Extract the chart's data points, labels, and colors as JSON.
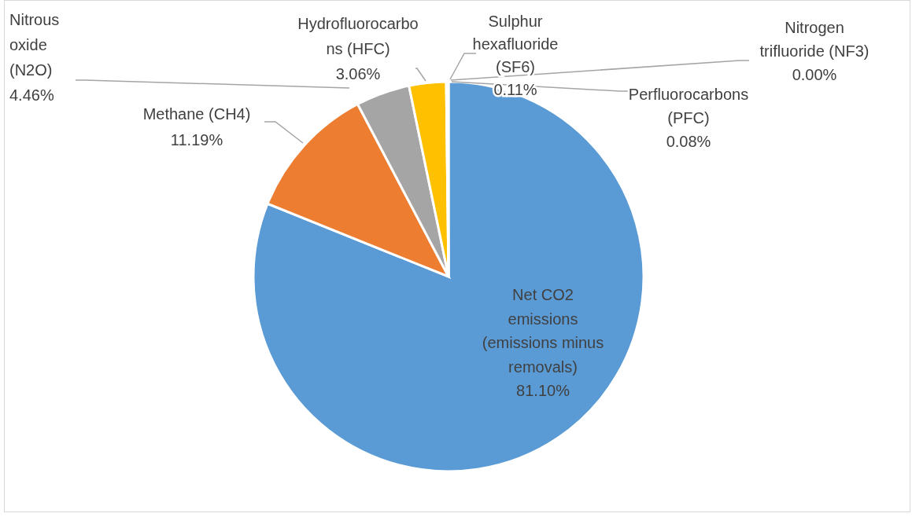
{
  "chart_data": {
    "type": "pie",
    "categories": [
      "Net CO2 emissions (emissions minus removals)",
      "Methane (CH4)",
      "Nitrous oxide (N2O)",
      "Hydrofluorocarbons (HFC)",
      "Perfluorocarbons (PFC)",
      "Sulphur hexafluoride (SF6)",
      "Nitrogen trifluoride (NF3)"
    ],
    "values": [
      81.1,
      11.19,
      4.46,
      3.06,
      0.08,
      0.11,
      0.0
    ],
    "value_labels": [
      "81.10%",
      "11.19%",
      "4.46%",
      "3.06%",
      "0.08%",
      "0.11%",
      "0.00%"
    ],
    "colors": [
      "#5b9bd5",
      "#ed7d31",
      "#a5a5a5",
      "#ffc000",
      "#4472c4",
      "#70ad47",
      "#264478"
    ],
    "legend": false
  }
}
